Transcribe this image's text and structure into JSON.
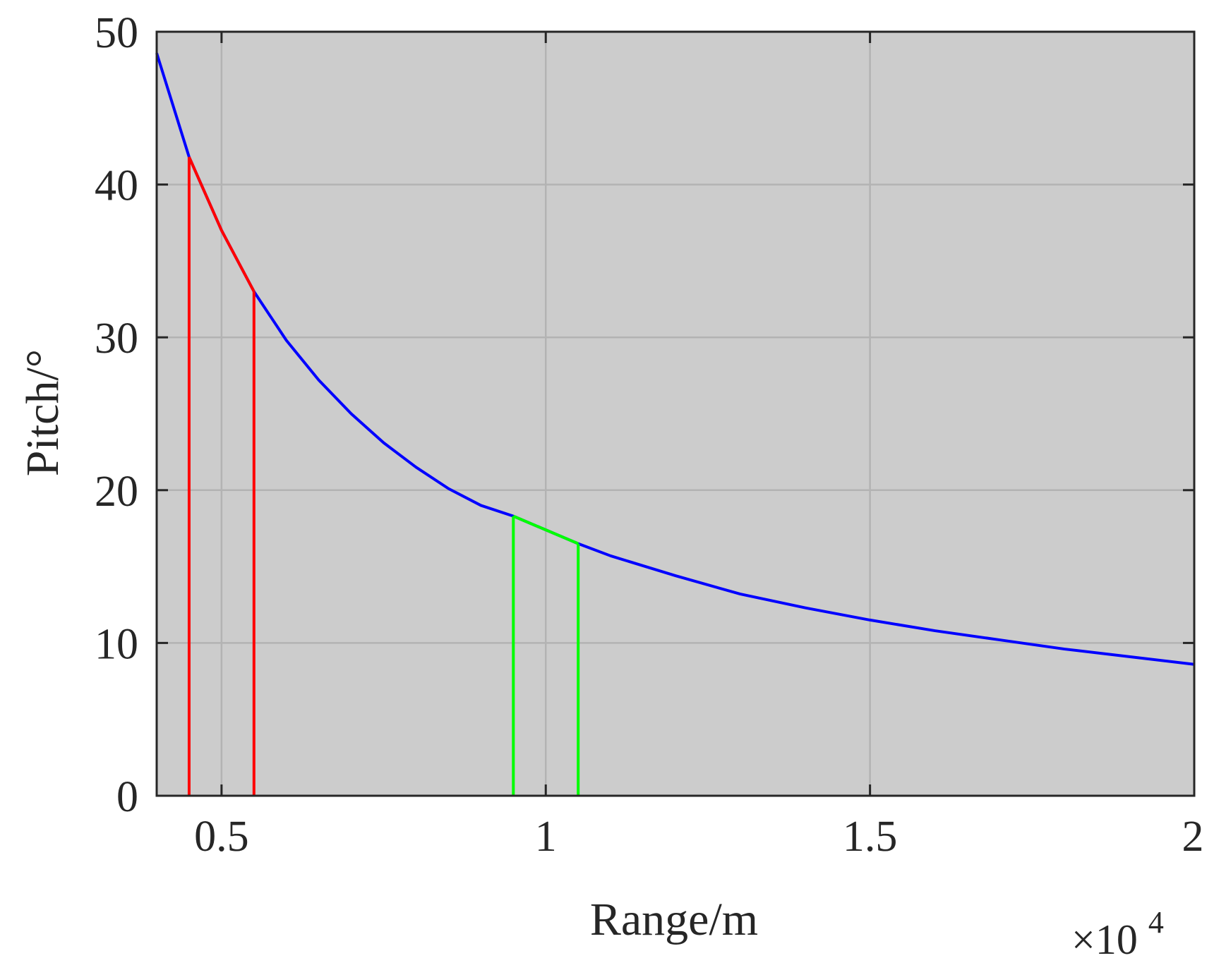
{
  "chart_data": {
    "type": "line",
    "title": "",
    "xlabel": "Range/m",
    "ylabel": "Pitch/°",
    "x_exponent_label": {
      "base": "×10",
      "power": "4"
    },
    "xlim": [
      4000,
      20000
    ],
    "ylim": [
      0,
      50
    ],
    "x_scale_factor": 10000,
    "xticks": [
      5000,
      10000,
      15000,
      20000
    ],
    "xtick_labels": [
      "0.5",
      "1",
      "1.5",
      "2"
    ],
    "yticks": [
      0,
      10,
      20,
      30,
      40,
      50
    ],
    "ytick_labels": [
      "0",
      "10",
      "20",
      "30",
      "40",
      "50"
    ],
    "grid": true,
    "background": "#cccccc",
    "grid_color": "#b3b3b3",
    "series": [
      {
        "color": "#0000ff",
        "x": [
          4000,
          4500,
          5000,
          5500,
          6000,
          6500,
          7000,
          7500,
          8000,
          8500,
          9000,
          9500,
          10000,
          10500,
          11000,
          12000,
          13000,
          14000,
          15000,
          16000,
          17000,
          18000,
          19000,
          20000
        ],
        "y": [
          48.6,
          41.8,
          37.0,
          33.0,
          29.8,
          27.2,
          25.0,
          23.1,
          21.5,
          20.1,
          19.0,
          18.3,
          17.4,
          16.5,
          15.7,
          14.4,
          13.2,
          12.3,
          11.5,
          10.8,
          10.2,
          9.6,
          9.1,
          8.6
        ]
      },
      {
        "color": "#ff0000",
        "x": [
          4500,
          5000,
          5500
        ],
        "y": [
          41.8,
          37.0,
          33.0
        ],
        "drop_lines": [
          4500,
          5500
        ]
      },
      {
        "color": "#00ff00",
        "x": [
          9500,
          10000,
          10500
        ],
        "y": [
          18.3,
          17.4,
          16.5
        ],
        "drop_lines": [
          9500,
          10500
        ]
      }
    ]
  }
}
